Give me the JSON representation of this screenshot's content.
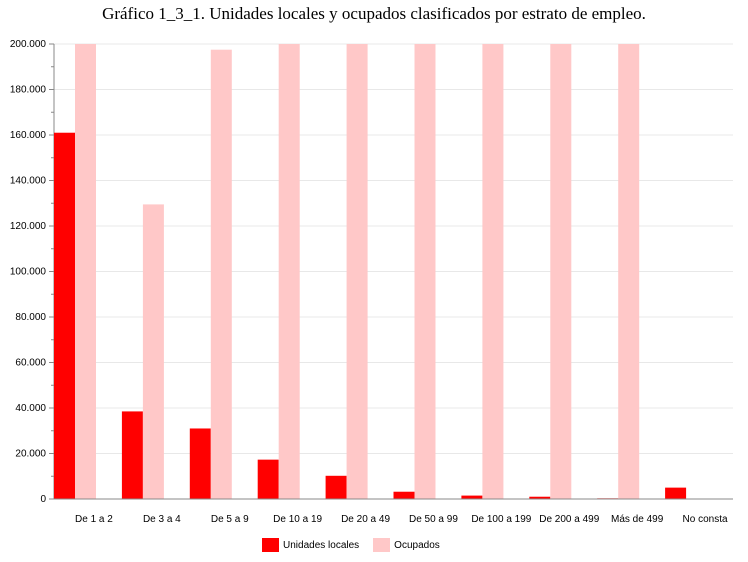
{
  "chart_data": {
    "type": "bar",
    "title": "Gráfico 1_3_1. Unidades locales y ocupados clasificados por estrato de empleo.",
    "categories": [
      "De 1 a 2",
      "De 3 a 4",
      "De 5 a 9",
      "De 10 a 19",
      "De 20 a 49",
      "De 50 a 99",
      "De 100 a 199",
      "De 200 a 499",
      "Más de 499",
      "No consta"
    ],
    "series": [
      {
        "name": "Unidades locales",
        "color": "#ff0000",
        "values": [
          161000,
          38500,
          31000,
          17300,
          10200,
          3200,
          1500,
          1000,
          300,
          5000
        ]
      },
      {
        "name": "Ocupados",
        "color": "#ffc8c8",
        "values": [
          200000,
          129500,
          197500,
          200000,
          200000,
          200000,
          200000,
          200000,
          200000,
          0
        ]
      }
    ],
    "ylim": [
      0,
      200000
    ],
    "yticks": [
      0,
      20000,
      40000,
      60000,
      80000,
      100000,
      120000,
      140000,
      160000,
      180000,
      200000
    ],
    "ytick_labels": [
      "0",
      "20.000",
      "40.000",
      "60.000",
      "80.000",
      "100.000",
      "120.000",
      "140.000",
      "160.000",
      "180.000",
      "200.000"
    ],
    "xlabel": "",
    "ylabel": "",
    "grid": true,
    "legend_position": "bottom"
  }
}
